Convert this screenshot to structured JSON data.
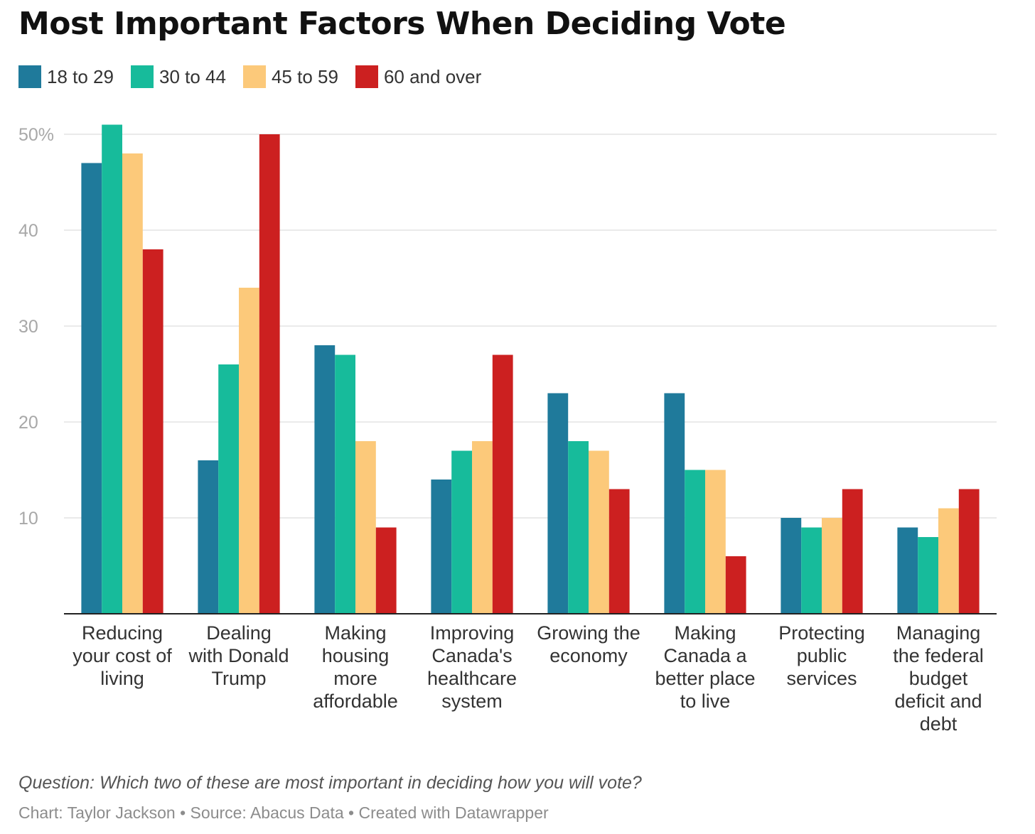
{
  "chart_data": {
    "type": "bar",
    "title": "Most Important Factors When Deciding Vote",
    "categories": [
      [
        "Reducing",
        "your cost of",
        "living"
      ],
      [
        "Dealing",
        "with Donald",
        "Trump"
      ],
      [
        "Making",
        "housing",
        "more",
        "affordable"
      ],
      [
        "Improving",
        "Canada's",
        "healthcare",
        "system"
      ],
      [
        "Growing the",
        "economy"
      ],
      [
        "Making",
        "Canada a",
        "better place",
        "to live"
      ],
      [
        "Protecting",
        "public",
        "services"
      ],
      [
        "Managing",
        "the federal",
        "budget",
        "deficit and",
        "debt"
      ]
    ],
    "series": [
      {
        "name": "18 to 29",
        "color": "#1f7a9b",
        "values": [
          47,
          16,
          28,
          14,
          23,
          23,
          10,
          9
        ]
      },
      {
        "name": "30 to 44",
        "color": "#17bb9b",
        "values": [
          51,
          26,
          27,
          17,
          18,
          15,
          9,
          8
        ]
      },
      {
        "name": "45 to 59",
        "color": "#fcc97a",
        "values": [
          48,
          34,
          18,
          18,
          17,
          15,
          10,
          11
        ]
      },
      {
        "name": "60 and over",
        "color": "#cc2020",
        "values": [
          38,
          50,
          9,
          27,
          13,
          6,
          13,
          13
        ]
      }
    ],
    "ylim": [
      0,
      50
    ],
    "yticks": [
      10,
      20,
      30,
      40,
      50
    ],
    "ytick_labels": [
      "10",
      "20",
      "30",
      "40",
      "50%"
    ],
    "xlabel": "",
    "ylabel": "",
    "grid": true,
    "legend": "top-left"
  },
  "footer": {
    "question": "Question: Which two of these are most important in deciding how you will vote?",
    "credits": "Chart: Taylor Jackson • Source: Abacus Data • Created with Datawrapper"
  }
}
